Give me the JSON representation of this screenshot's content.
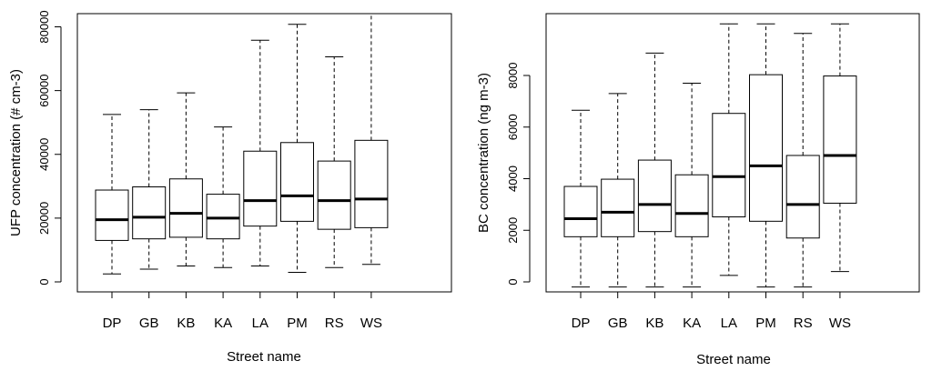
{
  "chart_data": [
    {
      "type": "box",
      "xlabel": "Street name",
      "ylabel": "UFP concentration (# cm-3)",
      "ylim": [
        0,
        85000
      ],
      "yticks": [
        0,
        20000,
        40000,
        60000,
        80000
      ],
      "grid": false,
      "categories": [
        "DP",
        "GB",
        "KB",
        "KA",
        "LA",
        "PM",
        "RS",
        "WS"
      ],
      "boxes": [
        {
          "whisker_low": 2500,
          "q1": 13000,
          "median": 19500,
          "q3": 28800,
          "whisker_high": 52500
        },
        {
          "whisker_low": 4000,
          "q1": 13500,
          "median": 20300,
          "q3": 29800,
          "whisker_high": 54000
        },
        {
          "whisker_low": 5000,
          "q1": 14000,
          "median": 21500,
          "q3": 32300,
          "whisker_high": 59300
        },
        {
          "whisker_low": 4500,
          "q1": 13500,
          "median": 20000,
          "q3": 27500,
          "whisker_high": 48600
        },
        {
          "whisker_low": 5000,
          "q1": 17500,
          "median": 25500,
          "q3": 41000,
          "whisker_high": 75800
        },
        {
          "whisker_low": 3000,
          "q1": 19000,
          "median": 27000,
          "q3": 43700,
          "whisker_high": 80800
        },
        {
          "whisker_low": 4500,
          "q1": 16500,
          "median": 25500,
          "q3": 37900,
          "whisker_high": 70600
        },
        {
          "whisker_low": 5500,
          "q1": 17000,
          "median": 26000,
          "q3": 44400,
          "whisker_high": 85000
        }
      ]
    },
    {
      "type": "box",
      "xlabel": "Street name",
      "ylabel": "BC concentration (ng m-3)",
      "ylim": [
        -300,
        10000
      ],
      "yticks": [
        0,
        2000,
        4000,
        6000,
        8000
      ],
      "grid": false,
      "categories": [
        "DP",
        "GB",
        "KB",
        "KA",
        "LA",
        "PM",
        "RS",
        "WS"
      ],
      "boxes": [
        {
          "whisker_low": -200,
          "q1": 1750,
          "median": 2450,
          "q3": 3700,
          "whisker_high": 6650
        },
        {
          "whisker_low": -200,
          "q1": 1750,
          "median": 2700,
          "q3": 3980,
          "whisker_high": 7300
        },
        {
          "whisker_low": -200,
          "q1": 1950,
          "median": 3000,
          "q3": 4720,
          "whisker_high": 8870
        },
        {
          "whisker_low": -200,
          "q1": 1750,
          "median": 2650,
          "q3": 4150,
          "whisker_high": 7700
        },
        {
          "whisker_low": 250,
          "q1": 2520,
          "median": 4080,
          "q3": 6530,
          "whisker_high": 10000
        },
        {
          "whisker_low": -200,
          "q1": 2350,
          "median": 4500,
          "q3": 8030,
          "whisker_high": 10000
        },
        {
          "whisker_low": -200,
          "q1": 1700,
          "median": 3000,
          "q3": 4900,
          "whisker_high": 9630
        },
        {
          "whisker_low": 400,
          "q1": 3050,
          "median": 4900,
          "q3": 7980,
          "whisker_high": 10000
        }
      ]
    }
  ]
}
